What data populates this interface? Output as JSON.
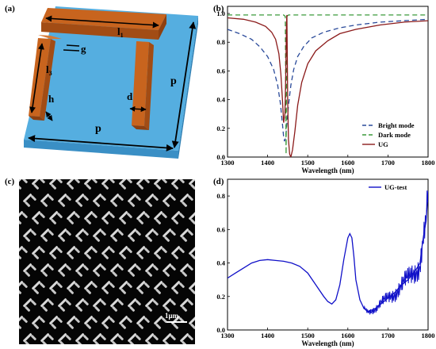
{
  "panels": {
    "a": {
      "label": "(a)",
      "dims": {
        "l1": "l",
        "l1_sub": "1",
        "l3": "l",
        "l3_sub": "3",
        "g": "g",
        "h": "h",
        "d": "d",
        "p_right": "p",
        "p_bottom": "p"
      },
      "colors": {
        "substrate_top": "#55aee0",
        "substrate_side": "#3a8fc5",
        "metal_top": "#c8641e",
        "metal_side": "#a24c14"
      }
    },
    "b": {
      "label": "(b)",
      "chart_data": {
        "type": "line",
        "xlabel": "Wavelength (nm)",
        "ylabel": "Transmittance",
        "xlim": [
          1300,
          1800
        ],
        "ylim": [
          0,
          1.05
        ],
        "xticks": [
          1300,
          1400,
          1500,
          1600,
          1700,
          1800
        ],
        "yticks": [
          0.0,
          0.2,
          0.4,
          0.6,
          0.8,
          1.0
        ],
        "ytick_labels": [
          "0.0",
          "0.2",
          "0.4",
          "0.6",
          "0.8",
          "1.0"
        ],
        "legend_position": "bottom-right",
        "series": [
          {
            "name": "Bright mode",
            "style": "dashed",
            "color": "#2a4a9a",
            "x": [
              1300,
              1330,
              1360,
              1380,
              1400,
              1415,
              1425,
              1432,
              1437,
              1440,
              1442,
              1445,
              1448,
              1452,
              1458,
              1465,
              1475,
              1490,
              1510,
              1540,
              1580,
              1620,
              1680,
              1740,
              1800
            ],
            "y": [
              0.89,
              0.86,
              0.82,
              0.77,
              0.7,
              0.61,
              0.5,
              0.37,
              0.23,
              0.14,
              0.11,
              0.14,
              0.23,
              0.36,
              0.5,
              0.61,
              0.7,
              0.77,
              0.83,
              0.87,
              0.9,
              0.92,
              0.94,
              0.95,
              0.96
            ]
          },
          {
            "name": "Dark mode",
            "style": "dashed",
            "color": "#3a9a3a",
            "x": [
              1300,
              1400,
              1440,
              1444,
              1446,
              1448,
              1452,
              1500,
              1600,
              1700,
              1800
            ],
            "y": [
              0.99,
              0.99,
              0.99,
              0.98,
              0.02,
              0.98,
              0.99,
              0.99,
              0.99,
              0.99,
              0.99
            ]
          },
          {
            "name": "UG",
            "style": "solid",
            "color": "#8b1a1a",
            "x": [
              1300,
              1340,
              1370,
              1395,
              1410,
              1420,
              1428,
              1433,
              1437,
              1440,
              1443,
              1445,
              1447,
              1448,
              1449,
              1450,
              1452,
              1455,
              1458,
              1462,
              1468,
              1475,
              1485,
              1500,
              1520,
              1550,
              1580,
              1620,
              1680,
              1740,
              1800
            ],
            "y": [
              0.97,
              0.96,
              0.94,
              0.91,
              0.87,
              0.82,
              0.72,
              0.58,
              0.4,
              0.24,
              0.3,
              0.55,
              0.93,
              0.99,
              0.7,
              0.4,
              0.12,
              0.02,
              0.0,
              0.05,
              0.18,
              0.36,
              0.52,
              0.65,
              0.74,
              0.81,
              0.86,
              0.89,
              0.92,
              0.94,
              0.95
            ]
          }
        ]
      }
    },
    "c": {
      "label": "(c)",
      "scale_bar": "1μm"
    },
    "d": {
      "label": "(d)",
      "chart_data": {
        "type": "line",
        "xlabel": "Wavelength (nm)",
        "ylabel": "Transmittance",
        "xlim": [
          1300,
          1800
        ],
        "ylim": [
          0,
          0.9
        ],
        "xticks": [
          1300,
          1400,
          1500,
          1600,
          1700,
          1800
        ],
        "yticks": [
          0.0,
          0.2,
          0.4,
          0.6,
          0.8
        ],
        "ytick_labels": [
          "0.0",
          "0.2",
          "0.4",
          "0.6",
          "0.8"
        ],
        "legend_position": "top-right",
        "series": [
          {
            "name": "UG-test",
            "style": "solid",
            "color": "#1010c8",
            "x": [
              1300,
              1320,
              1340,
              1360,
              1380,
              1400,
              1420,
              1440,
              1460,
              1480,
              1500,
              1520,
              1540,
              1550,
              1560,
              1570,
              1580,
              1590,
              1600,
              1605,
              1610,
              1615,
              1620,
              1630,
              1640,
              1650,
              1660,
              1670,
              1680,
              1690,
              1700,
              1710,
              1720,
              1730,
              1740,
              1750,
              1760,
              1770,
              1780,
              1785,
              1790,
              1795,
              1800
            ],
            "y": [
              0.31,
              0.34,
              0.37,
              0.4,
              0.415,
              0.42,
              0.415,
              0.41,
              0.4,
              0.38,
              0.34,
              0.27,
              0.2,
              0.17,
              0.155,
              0.18,
              0.27,
              0.42,
              0.55,
              0.575,
              0.55,
              0.44,
              0.3,
              0.18,
              0.13,
              0.11,
              0.12,
              0.13,
              0.15,
              0.17,
              0.19,
              0.21,
              0.23,
              0.26,
              0.28,
              0.3,
              0.33,
              0.36,
              0.4,
              0.5,
              0.58,
              0.65,
              0.83
            ]
          }
        ]
      }
    }
  }
}
